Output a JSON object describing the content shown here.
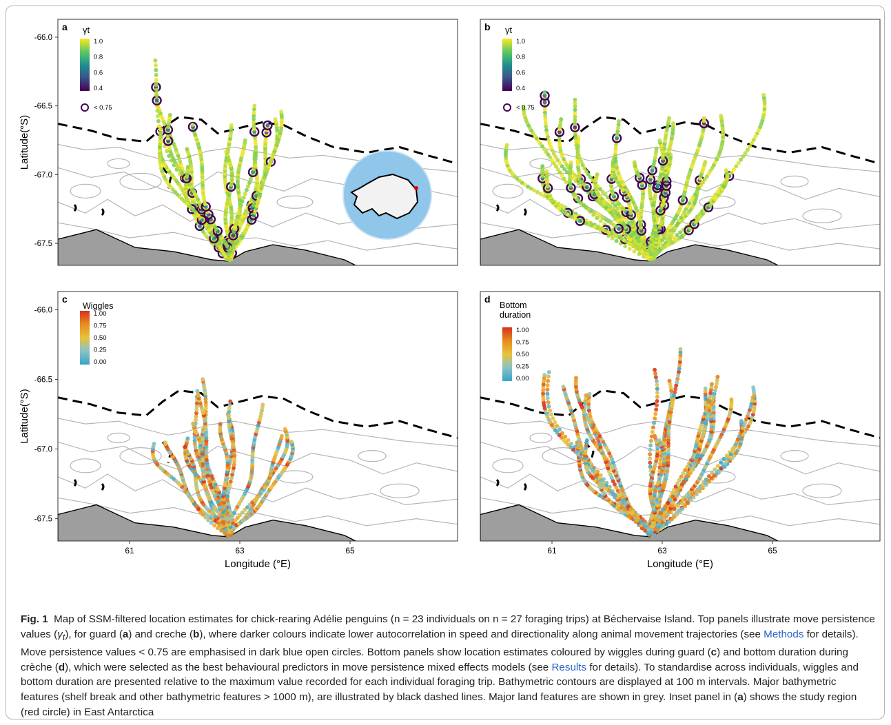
{
  "figure": {
    "panels": [
      {
        "letter": "a",
        "legend_title": "γt",
        "legend_ticks": [
          "1.0",
          "0.8",
          "0.6",
          "0.4"
        ],
        "legend_extra": "< 0.75",
        "scheme": "viridis",
        "stage": "guard"
      },
      {
        "letter": "b",
        "legend_title": "γt",
        "legend_ticks": [
          "1.0",
          "0.8",
          "0.6",
          "0.4"
        ],
        "legend_extra": "< 0.75",
        "scheme": "viridis",
        "stage": "creche"
      },
      {
        "letter": "c",
        "legend_title": "Wiggles",
        "legend_ticks": [
          "1.00",
          "0.75",
          "0.50",
          "0.25",
          "0.00"
        ],
        "scheme": "diverging",
        "stage": "guard"
      },
      {
        "letter": "d",
        "legend_title_lines": [
          "Bottom",
          "duration"
        ],
        "legend_ticks": [
          "1.00",
          "0.75",
          "0.50",
          "0.25",
          "0.00"
        ],
        "scheme": "diverging",
        "stage": "creche"
      }
    ],
    "axes": {
      "x_label": "Longitude (°E)",
      "y_label": "Latitude(°S)",
      "x_ticks": [
        "61",
        "63",
        "65"
      ],
      "y_ticks": [
        "-66.0",
        "-66.5",
        "-67.0",
        "-67.5"
      ]
    },
    "colors": {
      "viridis": [
        "#440154",
        "#3b528b",
        "#21908d",
        "#5dc963",
        "#fde725"
      ],
      "diverging": [
        "#3aa3c4",
        "#87c3c9",
        "#e8c33c",
        "#e88c1e",
        "#d7301f"
      ],
      "land": "#9e9e9e",
      "contour": "#b5b5b5",
      "shelf_break": "#000000",
      "inset_ocean": "#8fc6ea"
    }
  },
  "caption": {
    "label": "Fig. 1",
    "s1": "Map of SSM-filtered location estimates for chick-rearing Adélie penguins (n = 23 individuals on n = 27 foraging trips) at Béchervaise Island. Top panels illustrate move persistence values (",
    "gamma": "γ",
    "gamma_sub": "t",
    "s2": "), for guard (",
    "a": "a",
    "s3": ") and creche (",
    "b": "b",
    "s4": "), where darker colours indicate lower autocorrelation in speed and directionality along animal movement trajectories (see ",
    "methods": "Methods",
    "s5": " for details). Move persistence values < 0.75 are emphasised in dark blue open circles. Bottom panels show location estimates coloured by wiggles during guard (",
    "c": "c",
    "s6": ") and bottom duration during crèche (",
    "d": "d",
    "s7": "), which were selected as the best behavioural predictors in move persistence mixed effects models (see ",
    "results": "Results",
    "s8": " for details). To standardise across individuals, wiggles and bottom duration are presented relative to the maximum value recorded for each individual foraging trip. Bathymetric contours are displayed at 100 m intervals. Major bathymetric features (shelf break and other bathymetric features > 1000 m), are illustrated by black dashed lines. Major land features are shown in grey. Inset panel in (",
    "a2": "a",
    "s9": ") shows the study region (red circle) in East Antarctica"
  }
}
